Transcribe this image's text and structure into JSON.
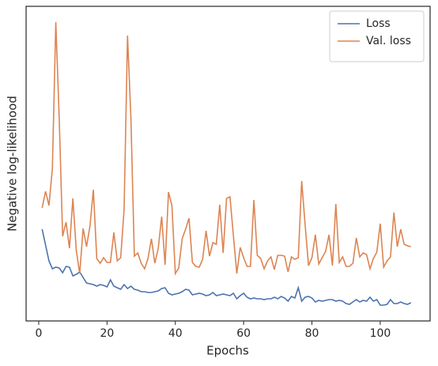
{
  "chart_data": {
    "type": "line",
    "xlabel": "Epochs",
    "ylabel": "Negative log-likelihood",
    "x": [
      1,
      2,
      3,
      4,
      5,
      6,
      7,
      8,
      9,
      10,
      11,
      12,
      13,
      14,
      15,
      16,
      17,
      18,
      19,
      20,
      21,
      22,
      23,
      24,
      25,
      26,
      27,
      28,
      29,
      30,
      31,
      32,
      33,
      34,
      35,
      36,
      37,
      38,
      39,
      40,
      41,
      42,
      43,
      44,
      45,
      46,
      47,
      48,
      49,
      50,
      51,
      52,
      53,
      54,
      55,
      56,
      57,
      58,
      59,
      60,
      61,
      62,
      63,
      64,
      65,
      66,
      67,
      68,
      69,
      70,
      71,
      72,
      73,
      74,
      75,
      76,
      77,
      78,
      79,
      80,
      81,
      82,
      83,
      84,
      85,
      86,
      87,
      88,
      89,
      90,
      91,
      92,
      93,
      94,
      95,
      96,
      97,
      98,
      99,
      100,
      101,
      102,
      103,
      104,
      105,
      106,
      107,
      108,
      109
    ],
    "series": [
      {
        "name": "Loss",
        "color": "#4c72b0",
        "values": [
          116,
          96,
          76,
          66,
          68,
          67,
          61,
          69,
          68,
          57,
          59,
          62,
          55,
          48,
          47,
          46,
          44,
          46,
          45,
          43,
          52,
          44,
          42,
          40,
          46,
          41,
          44,
          40,
          39,
          37,
          37,
          36,
          36,
          37,
          38,
          41,
          42,
          35,
          33,
          34,
          35,
          37,
          40,
          39,
          33,
          34,
          35,
          34,
          32,
          33,
          36,
          32,
          33,
          34,
          33,
          32,
          35,
          28,
          32,
          35,
          30,
          28,
          29,
          28,
          28,
          27,
          28,
          28,
          30,
          28,
          31,
          29,
          25,
          31,
          29,
          42,
          25,
          30,
          31,
          29,
          24,
          26,
          25,
          26,
          27,
          27,
          25,
          26,
          25,
          22,
          21,
          24,
          27,
          24,
          26,
          25,
          30,
          25,
          27,
          20,
          20,
          21,
          27,
          22,
          22,
          24,
          22,
          21,
          23
        ]
      },
      {
        "name": "Val. loss",
        "color": "#dd8452",
        "values": [
          143,
          164,
          146,
          193,
          378,
          256,
          107,
          125,
          92,
          155,
          89,
          60,
          117,
          94,
          120,
          166,
          79,
          73,
          80,
          74,
          74,
          112,
          76,
          80,
          141,
          361,
          256,
          82,
          86,
          73,
          66,
          79,
          104,
          73,
          92,
          132,
          71,
          163,
          146,
          60,
          67,
          104,
          116,
          130,
          74,
          69,
          68,
          78,
          114,
          82,
          99,
          97,
          147,
          86,
          155,
          157,
          108,
          60,
          93,
          80,
          69,
          69,
          153,
          83,
          79,
          66,
          76,
          81,
          65,
          83,
          83,
          82,
          62,
          81,
          78,
          80,
          177,
          122,
          70,
          80,
          109,
          72,
          80,
          88,
          109,
          70,
          148,
          74,
          81,
          69,
          69,
          73,
          105,
          81,
          86,
          84,
          66,
          79,
          87,
          123,
          68,
          76,
          81,
          137,
          94,
          116,
          97,
          95,
          94
        ]
      }
    ],
    "xlim": [
      -3.7,
      114.6
    ],
    "xticks": [
      0,
      20,
      40,
      60,
      80,
      100
    ],
    "ylim": [
      0,
      398
    ],
    "grid": false,
    "legend": "upper right"
  }
}
